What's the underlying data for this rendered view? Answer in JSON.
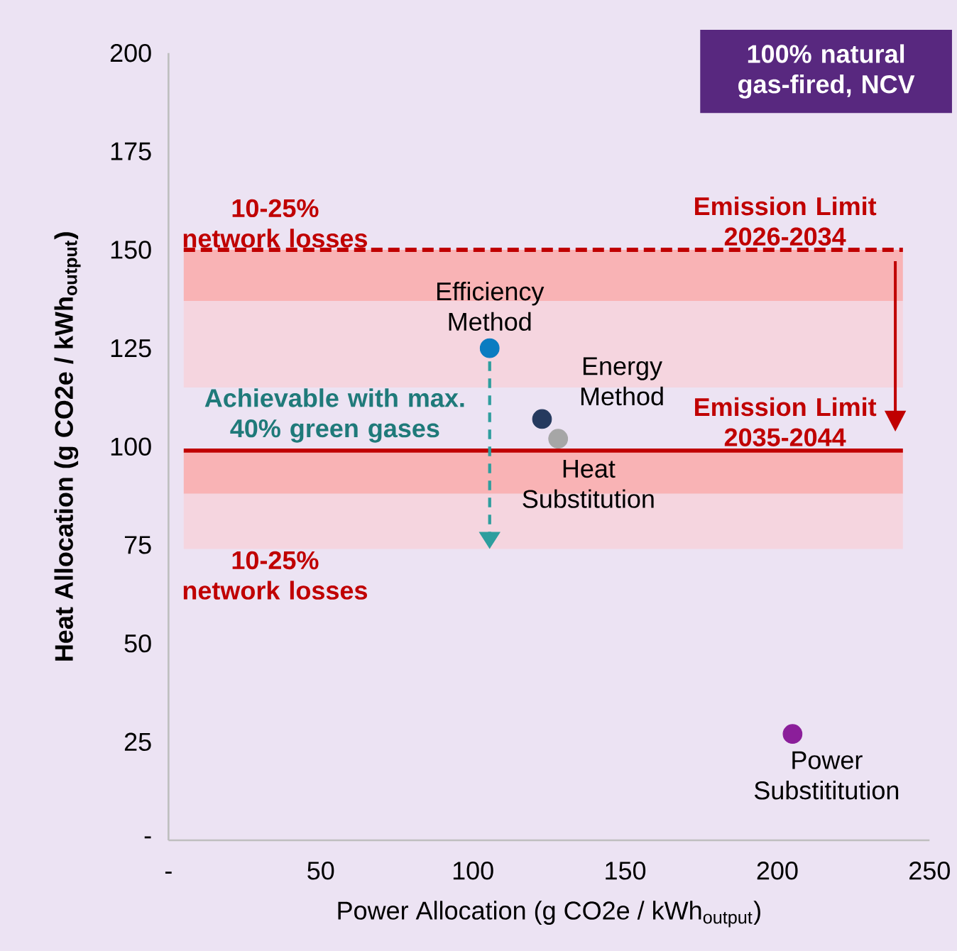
{
  "chart_data": {
    "type": "scatter",
    "xlabel": "Power Allocation (g CO2e / kWh$_{output}$)",
    "ylabel": "Heat Allocation (g CO2e / kWh$_{output}$)",
    "xlim": [
      0,
      250
    ],
    "ylim": [
      0,
      200
    ],
    "xticks": [
      {
        "value": 0,
        "label": "-"
      },
      50,
      100,
      150,
      200,
      250
    ],
    "yticks": [
      {
        "value": 0,
        "label": "-"
      },
      25,
      50,
      75,
      100,
      125,
      150,
      175,
      200
    ],
    "marker": "circle",
    "series": [
      {
        "name": "Efficiency Method",
        "color": "#0a7cc1",
        "x": [
          105.5
        ],
        "values": [
          125
        ]
      },
      {
        "name": "Energy Method",
        "color": "#253a5e",
        "x": [
          122.7
        ],
        "values": [
          107
        ]
      },
      {
        "name": "Heat Substitution",
        "color": "#a6a6a6",
        "x": [
          128
        ],
        "values": [
          102
        ]
      },
      {
        "name": "Power Substititution",
        "color": "#8b1e9a",
        "x": [
          205
        ],
        "values": [
          27
        ]
      }
    ],
    "ref_lines": [
      {
        "axis": "y",
        "value": 150,
        "label": "Emission Limit 2026-2034",
        "color": "#c00000",
        "line_style": "dashed"
      },
      {
        "axis": "y",
        "value": 99,
        "label": "Emission Limit 2035-2044",
        "color": "#c00000",
        "line_style": "solid"
      }
    ],
    "bands": [
      {
        "axis": "y",
        "from": 137,
        "to": 150,
        "label": "10-25% network losses",
        "color": "#f9b3b5"
      },
      {
        "axis": "y",
        "from": 115,
        "to": 137,
        "color": "#f5d5df"
      },
      {
        "axis": "y",
        "from": 88,
        "to": 99,
        "color": "#f9b3b5"
      },
      {
        "axis": "y",
        "from": 88,
        "to": 74,
        "label": "10-25% network losses",
        "color": "#f5d5df"
      }
    ],
    "annotations": [
      "Achievable with max. 40% green gases",
      "100% natural gas-fired, NCV"
    ]
  }
}
